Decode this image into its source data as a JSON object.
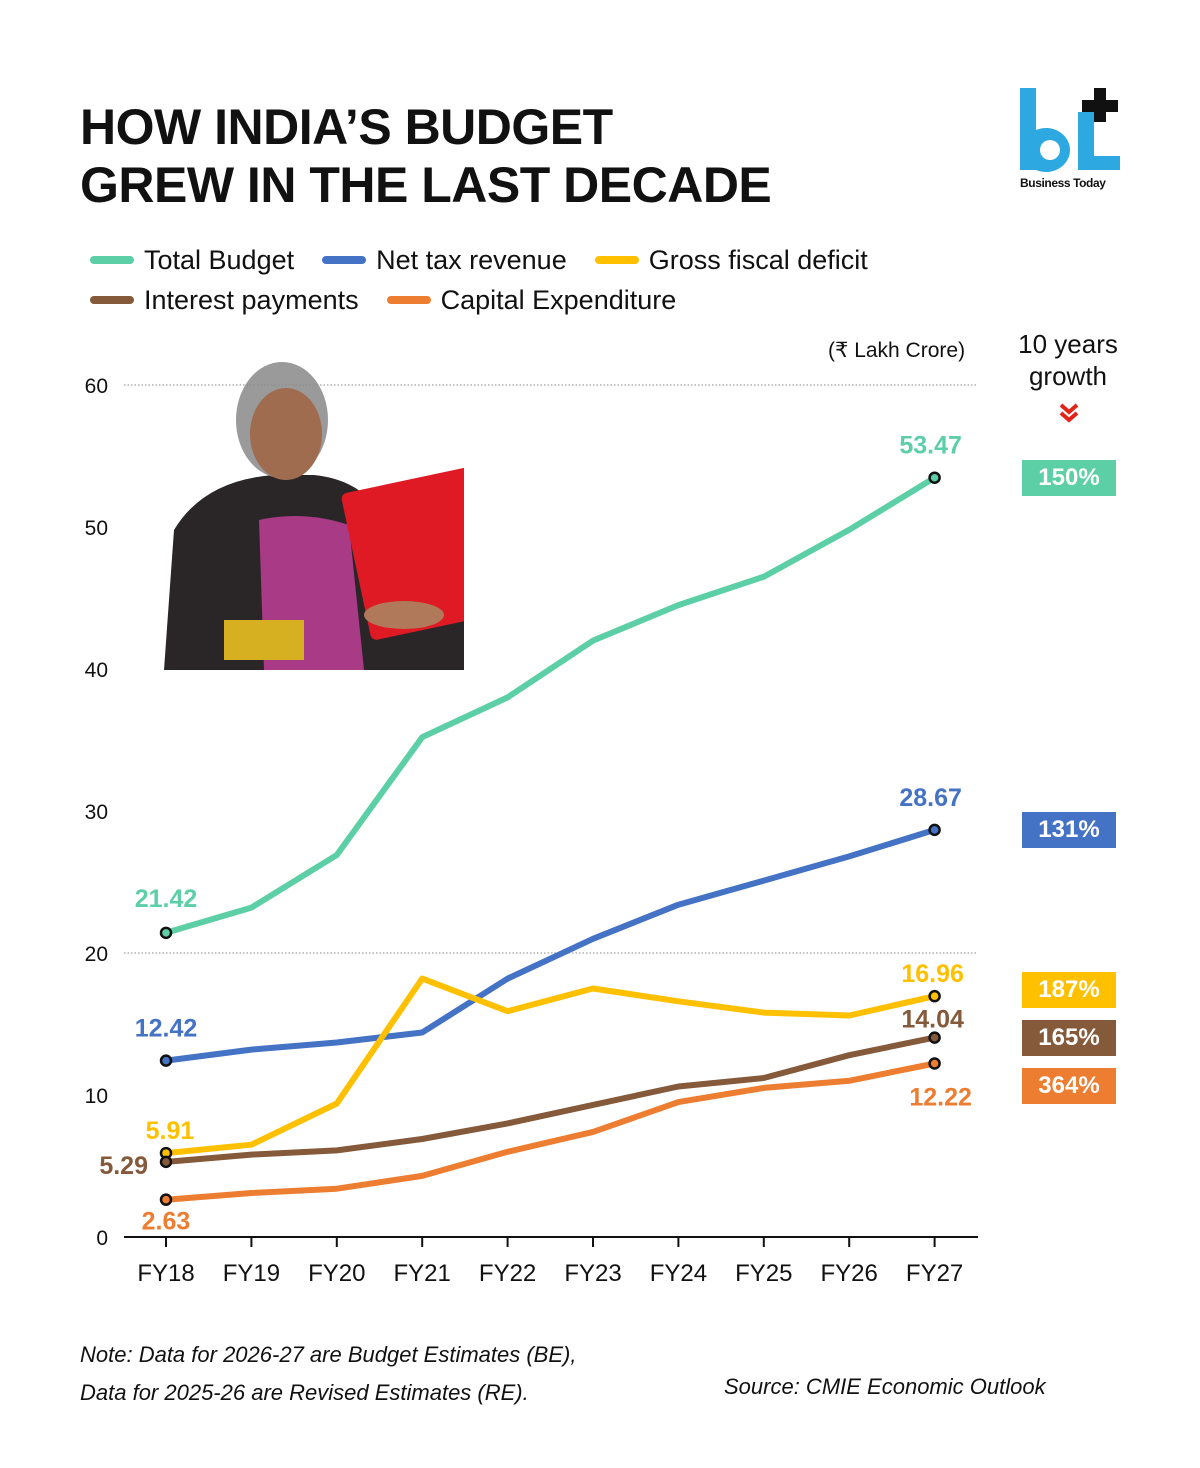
{
  "header": {
    "title_line1": "HOW INDIA’S BUDGET",
    "title_line2": "GREW IN THE LAST DECADE",
    "brand_logo": "bt",
    "brand_name": "Business Today",
    "brand_color": "#2ea8e0"
  },
  "unit_label": "(₹ Lakh Crore)",
  "growth": {
    "heading_line1": "10 years",
    "heading_line2": "growth",
    "icon": "double-chevron-down-icon",
    "items": [
      {
        "series": "Total Budget",
        "value": "150%",
        "color": "#5ccfa6"
      },
      {
        "series": "Net tax revenue",
        "value": "131%",
        "color": "#4472c4"
      },
      {
        "series": "Gross fiscal deficit",
        "value": "187%",
        "color": "#ffc000"
      },
      {
        "series": "Interest payments",
        "value": "165%",
        "color": "#845a3a"
      },
      {
        "series": "Capital Expenditure",
        "value": "364%",
        "color": "#ed7d31"
      }
    ]
  },
  "footer": {
    "note_line1": "Note: Data for 2026-27 are Budget Estimates (BE),",
    "note_line2": "Data for 2025-26 are Revised Estimates (RE).",
    "source": "Source: CMIE Economic Outlook"
  },
  "chart_data": {
    "type": "line",
    "title": "HOW INDIA’S BUDGET GREW IN THE LAST DECADE",
    "xlabel": "",
    "ylabel": "₹ Lakh Crore",
    "categories": [
      "FY18",
      "FY19",
      "FY20",
      "FY21",
      "FY22",
      "FY23",
      "FY24",
      "FY25",
      "FY26",
      "FY27"
    ],
    "ylim": [
      0,
      60
    ],
    "yticks": [
      0,
      10,
      20,
      30,
      40,
      50,
      60
    ],
    "grid": "horizontal dotted at 20 and 60",
    "legend_position": "top",
    "series": [
      {
        "name": "Total Budget",
        "color": "#5ccfa6",
        "values": [
          21.42,
          23.2,
          26.9,
          35.2,
          38.0,
          42.0,
          44.5,
          46.5,
          49.8,
          53.47
        ],
        "start_label": "21.42",
        "end_label": "53.47"
      },
      {
        "name": "Net tax revenue",
        "color": "#4472c4",
        "values": [
          12.42,
          13.2,
          13.7,
          14.4,
          18.2,
          21.0,
          23.4,
          25.1,
          26.8,
          28.67
        ],
        "start_label": "12.42",
        "end_label": "28.67"
      },
      {
        "name": "Gross fiscal deficit",
        "color": "#ffc000",
        "values": [
          5.91,
          6.5,
          9.4,
          18.2,
          15.9,
          17.5,
          16.6,
          15.8,
          15.6,
          16.96
        ],
        "start_label": "5.91",
        "end_label": "16.96"
      },
      {
        "name": "Interest payments",
        "color": "#845a3a",
        "values": [
          5.29,
          5.8,
          6.1,
          6.9,
          8.0,
          9.3,
          10.6,
          11.2,
          12.8,
          14.04
        ],
        "start_label": "5.29",
        "end_label": "14.04"
      },
      {
        "name": "Capital Expenditure",
        "color": "#ed7d31",
        "values": [
          2.63,
          3.1,
          3.4,
          4.3,
          6.0,
          7.4,
          9.5,
          10.5,
          11.0,
          12.22
        ],
        "start_label": "2.63",
        "end_label": "12.22"
      }
    ]
  }
}
